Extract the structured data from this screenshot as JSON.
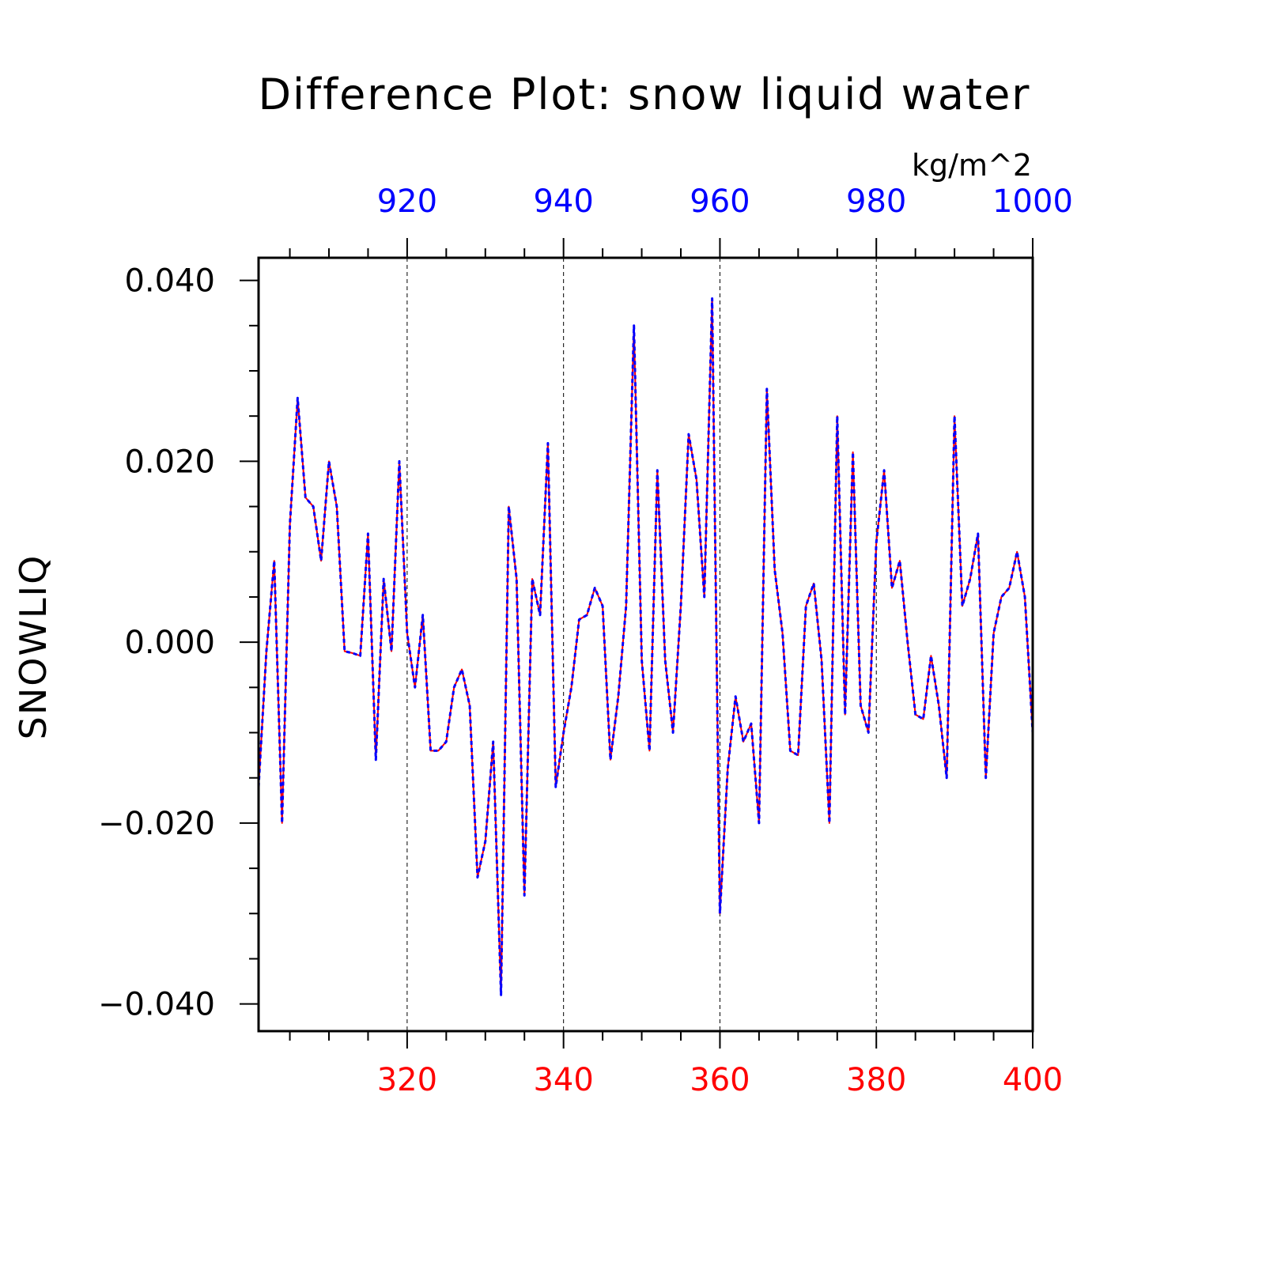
{
  "title": "Difference Plot: snow liquid water",
  "units": "kg/m^2",
  "chart_data": {
    "type": "line",
    "title": "Difference Plot: snow liquid water",
    "ylabel": "SNOWLIQ",
    "units": "kg/m^2",
    "grid": "vertical dashed lines at major bottom ticks",
    "bottom_axis": {
      "range": [
        301,
        400
      ],
      "tick_values": [
        320,
        340,
        360,
        380,
        400
      ],
      "tick_labels": [
        "320",
        "340",
        "360",
        "380",
        "400"
      ],
      "color": "#ff0000"
    },
    "top_axis": {
      "range": [
        901,
        1000
      ],
      "tick_values": [
        920,
        940,
        960,
        980,
        1000
      ],
      "tick_labels": [
        "920",
        "940",
        "960",
        "980",
        "1000"
      ],
      "color": "#0000ff"
    },
    "y_axis": {
      "range": [
        -0.043,
        0.0425
      ],
      "tick_values": [
        0.04,
        0.02,
        0.0,
        -0.02,
        -0.04
      ],
      "tick_labels": [
        "0.040",
        "0.020",
        "0.000",
        "−0.020",
        "−0.040"
      ]
    },
    "x": [
      301,
      302,
      303,
      304,
      305,
      306,
      307,
      308,
      309,
      310,
      311,
      312,
      313,
      314,
      315,
      316,
      317,
      318,
      319,
      320,
      321,
      322,
      323,
      324,
      325,
      326,
      327,
      328,
      329,
      330,
      331,
      332,
      333,
      334,
      335,
      336,
      337,
      338,
      339,
      340,
      341,
      342,
      343,
      344,
      345,
      346,
      347,
      348,
      349,
      350,
      351,
      352,
      353,
      354,
      355,
      356,
      357,
      358,
      359,
      360,
      361,
      362,
      363,
      364,
      365,
      366,
      367,
      368,
      369,
      370,
      371,
      372,
      373,
      374,
      375,
      376,
      377,
      378,
      379,
      380,
      381,
      382,
      383,
      384,
      385,
      386,
      387,
      388,
      389,
      390,
      391,
      392,
      393,
      394,
      395,
      396,
      397,
      398,
      399,
      400
    ],
    "series": [
      {
        "name": "",
        "color": "#ff0000",
        "style": "solid",
        "values": [
          -0.016,
          -0.001,
          0.009,
          -0.02,
          0.013,
          0.027,
          0.016,
          0.015,
          0.009,
          0.02,
          0.015,
          -0.001,
          -0.0012,
          -0.0015,
          0.012,
          -0.013,
          0.007,
          -0.001,
          0.02,
          0.001,
          -0.005,
          0.003,
          -0.012,
          -0.012,
          -0.011,
          -0.005,
          -0.003,
          -0.007,
          -0.026,
          -0.022,
          -0.011,
          -0.039,
          0.015,
          0.007,
          -0.028,
          0.007,
          0.003,
          0.022,
          -0.016,
          -0.01,
          -0.005,
          0.0025,
          0.003,
          0.006,
          0.004,
          -0.013,
          -0.006,
          0.004,
          0.035,
          -0.002,
          -0.012,
          0.019,
          -0.002,
          -0.01,
          0.004,
          0.023,
          0.018,
          0.005,
          0.038,
          -0.03,
          -0.014,
          -0.006,
          -0.011,
          -0.009,
          -0.02,
          0.028,
          0.008,
          0.001,
          -0.012,
          -0.0125,
          0.004,
          0.0065,
          -0.002,
          -0.02,
          0.025,
          -0.008,
          0.021,
          -0.007,
          -0.01,
          0.011,
          0.019,
          0.006,
          0.009,
          0.0,
          -0.008,
          -0.0085,
          -0.0015,
          -0.007,
          -0.015,
          0.025,
          0.004,
          0.007,
          0.012,
          -0.015,
          0.001,
          0.005,
          0.006,
          0.01,
          0.005,
          -0.01
        ]
      },
      {
        "name": "",
        "color": "#0000ff",
        "style": "dashed",
        "values": [
          -0.016,
          -0.001,
          0.009,
          -0.02,
          0.013,
          0.027,
          0.016,
          0.015,
          0.009,
          0.02,
          0.015,
          -0.001,
          -0.0012,
          -0.0015,
          0.012,
          -0.013,
          0.007,
          -0.001,
          0.02,
          0.001,
          -0.005,
          0.003,
          -0.012,
          -0.012,
          -0.011,
          -0.005,
          -0.003,
          -0.007,
          -0.026,
          -0.022,
          -0.011,
          -0.039,
          0.015,
          0.007,
          -0.028,
          0.007,
          0.003,
          0.022,
          -0.016,
          -0.01,
          -0.005,
          0.0025,
          0.003,
          0.006,
          0.004,
          -0.013,
          -0.006,
          0.004,
          0.035,
          -0.002,
          -0.012,
          0.019,
          -0.002,
          -0.01,
          0.004,
          0.023,
          0.018,
          0.005,
          0.038,
          -0.03,
          -0.014,
          -0.006,
          -0.011,
          -0.009,
          -0.02,
          0.028,
          0.008,
          0.001,
          -0.012,
          -0.0125,
          0.004,
          0.0065,
          -0.002,
          -0.02,
          0.025,
          -0.008,
          0.021,
          -0.007,
          -0.01,
          0.011,
          0.019,
          0.006,
          0.009,
          0.0,
          -0.008,
          -0.0085,
          -0.0015,
          -0.007,
          -0.015,
          0.025,
          0.004,
          0.007,
          0.012,
          -0.015,
          0.001,
          0.005,
          0.006,
          0.01,
          0.005,
          -0.01
        ]
      }
    ]
  }
}
